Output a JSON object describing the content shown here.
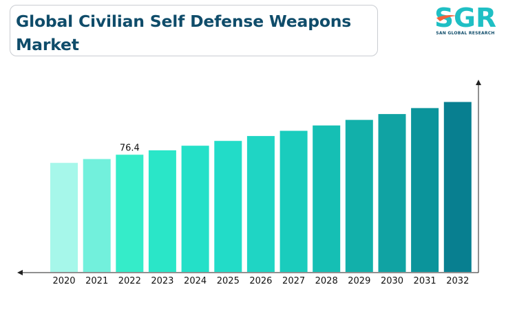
{
  "title": "Global Civilian Self Defense Weapons Market",
  "logo": {
    "text": "SGR",
    "tagline": "SAN GLOBAL RESEARCH",
    "text_color": "#1fbfc4",
    "accent_color": "#f2623a",
    "tagline_color": "#0f4c6a"
  },
  "chart_data": {
    "type": "bar",
    "title": "Global Civilian Self Defense Weapons Market",
    "xlabel": "",
    "ylabel": "",
    "categories": [
      "2020",
      "2021",
      "2022",
      "2023",
      "2024",
      "2025",
      "2026",
      "2027",
      "2028",
      "2029",
      "2030",
      "2031",
      "2032"
    ],
    "values": [
      71.1,
      73.6,
      76.4,
      79.3,
      82.3,
      85.4,
      88.6,
      92.0,
      95.5,
      99.1,
      102.9,
      106.8,
      110.8
    ],
    "data_labels": [
      {
        "category": "2022",
        "text": "76.4"
      }
    ],
    "ylim": [
      0,
      124
    ],
    "grid": false,
    "legend": "none",
    "bar_colors": [
      "#a6f7ea",
      "#72f0dc",
      "#35ecc9",
      "#2ae6c8",
      "#24e0c8",
      "#22dcc8",
      "#1fd5c4",
      "#1accbd",
      "#15bfb4",
      "#12b0aa",
      "#10a3a3",
      "#0b949b",
      "#087f90"
    ]
  }
}
